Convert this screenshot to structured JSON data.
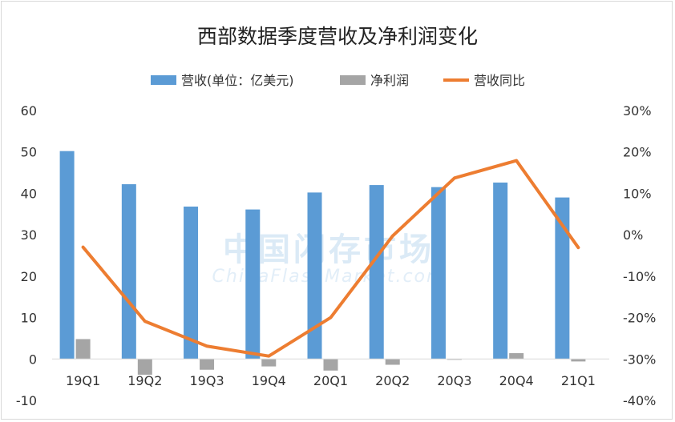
{
  "chart_data": {
    "type": "bar",
    "title": "西部数据季度营收及净利润变化",
    "categories": [
      "19Q1",
      "19Q2",
      "19Q3",
      "19Q4",
      "20Q1",
      "20Q2",
      "20Q3",
      "20Q4",
      "21Q1"
    ],
    "series": [
      {
        "name": "营收(单位：亿美元)",
        "kind": "bar",
        "axis": "left",
        "color": "#5b9bd5",
        "values": [
          50.2,
          42.2,
          36.8,
          36.1,
          40.2,
          42.0,
          41.5,
          42.6,
          39.0
        ]
      },
      {
        "name": "净利润",
        "kind": "bar",
        "axis": "left",
        "color": "#a5a5a5",
        "values": [
          4.8,
          -3.8,
          -2.6,
          -1.8,
          -2.8,
          -1.4,
          -0.2,
          1.4,
          -0.6
        ]
      },
      {
        "name": "营收同比",
        "kind": "line",
        "axis": "right",
        "color": "#ed7d31",
        "values": [
          -3.0,
          -20.9,
          -26.9,
          -29.3,
          -20.0,
          -0.3,
          13.7,
          17.9,
          -3.1
        ]
      }
    ],
    "y_left": {
      "min": -10,
      "max": 60,
      "ticks": [
        -10,
        0,
        10,
        20,
        30,
        40,
        50,
        60
      ],
      "tick_labels": [
        "-10",
        "0",
        "10",
        "20",
        "30",
        "40",
        "50",
        "60"
      ]
    },
    "y_right": {
      "min": -40,
      "max": 30,
      "ticks": [
        -40,
        -30,
        -20,
        -10,
        0,
        10,
        20,
        30
      ],
      "tick_labels": [
        "-40%",
        "-30%",
        "-20%",
        "-10%",
        "0%",
        "10%",
        "20%",
        "30%"
      ]
    },
    "grid": false,
    "legend_position": "top",
    "watermark": {
      "line1": "中国闪存市场",
      "line2": "ChinaFlashMarket.com"
    }
  }
}
